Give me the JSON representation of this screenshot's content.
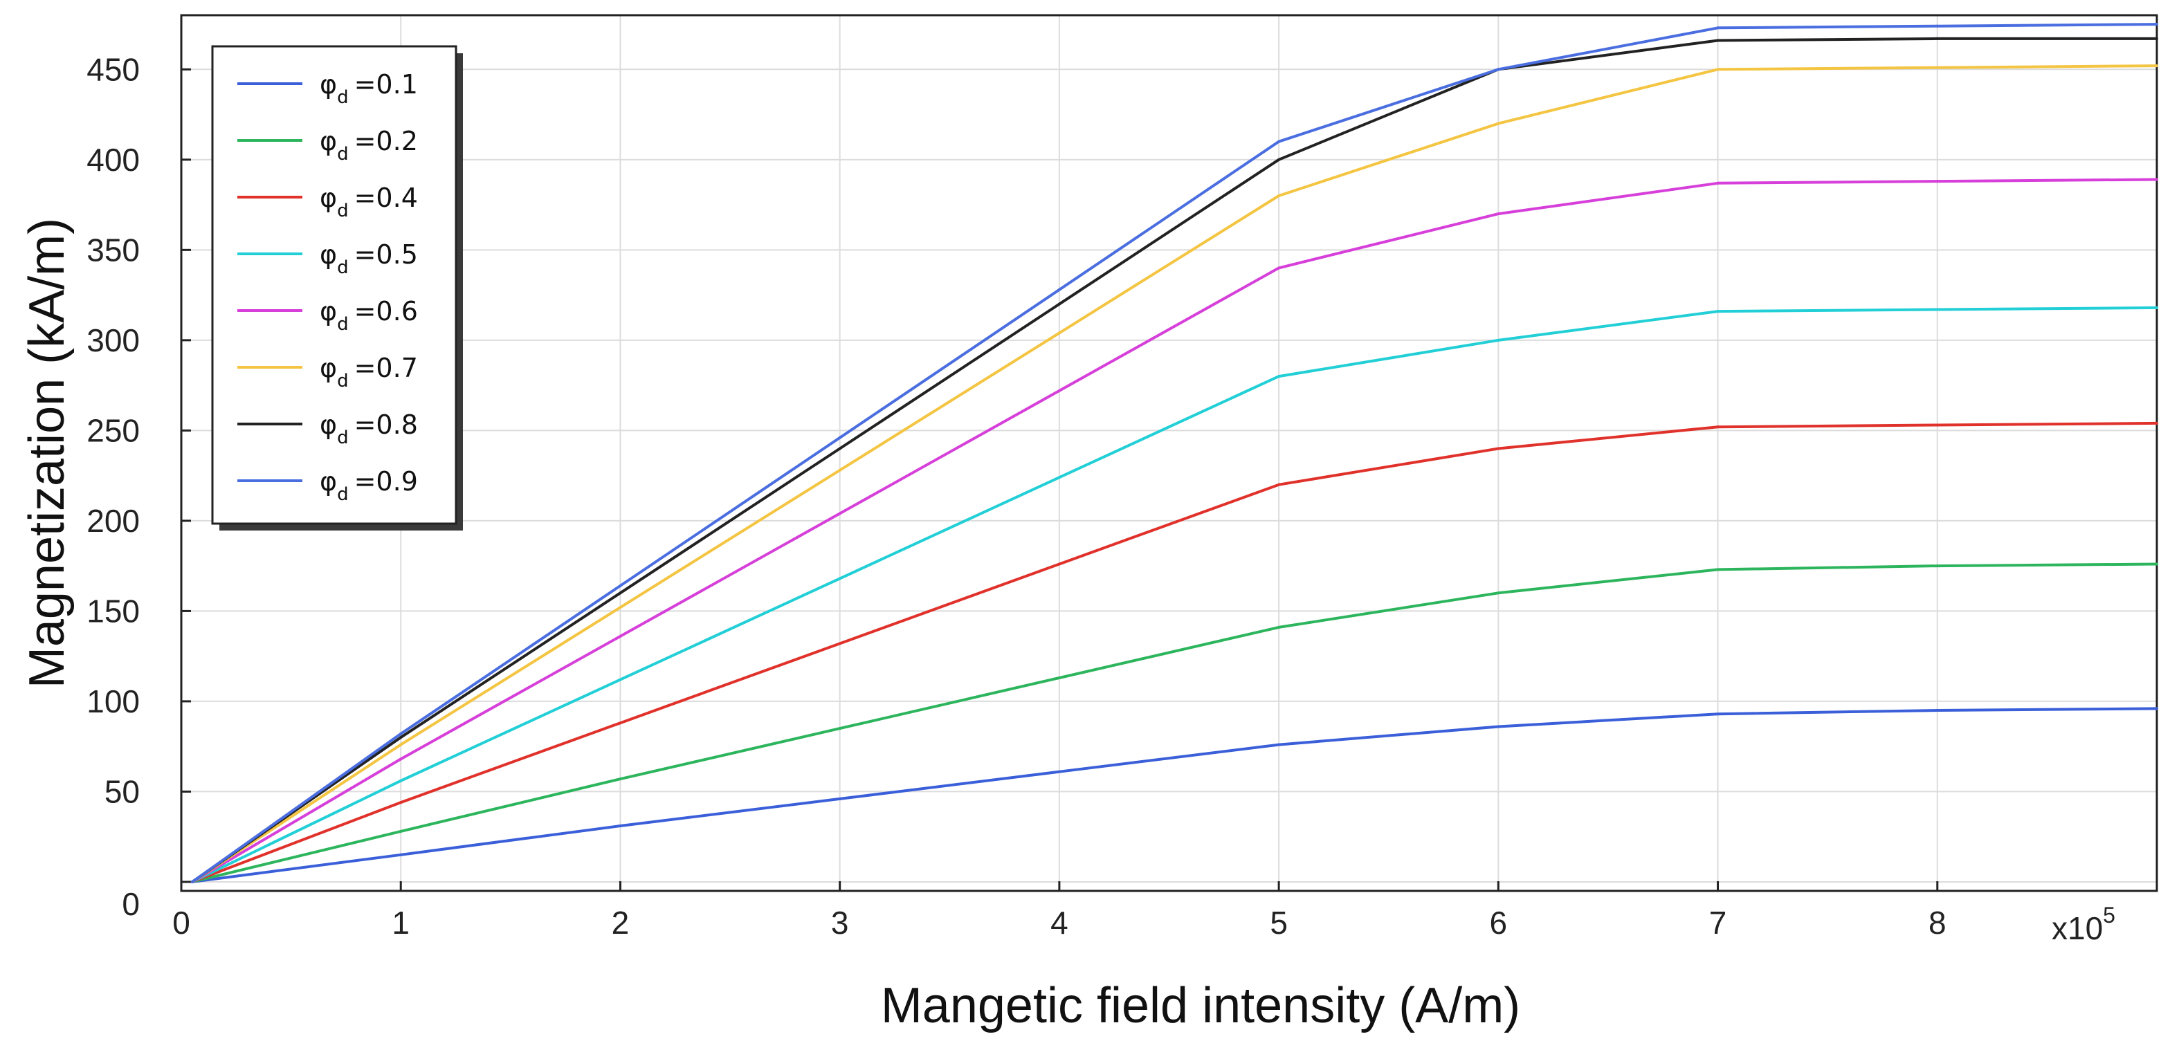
{
  "chart_data": {
    "type": "line",
    "xlabel": "Mangetic field intensity (A/m)",
    "ylabel": "Magnetization (kA/m)",
    "x_scale_label": "x10",
    "x_scale_exponent": "5",
    "x": [
      0.05,
      1,
      2,
      3,
      4,
      5,
      6,
      7,
      8,
      9
    ],
    "xlim": [
      0,
      9
    ],
    "ylim": [
      -5,
      480
    ],
    "xticks": [
      0,
      1,
      2,
      3,
      4,
      5,
      6,
      7,
      8
    ],
    "xtick_labels": [
      "0",
      "1",
      "2",
      "3",
      "4",
      "5",
      "6",
      "7",
      "8"
    ],
    "yticks": [
      0,
      50,
      100,
      150,
      200,
      250,
      300,
      350,
      400,
      450
    ],
    "ytick_labels": [
      "0",
      "50",
      "100",
      "150",
      "200",
      "250",
      "300",
      "350",
      "400",
      "450"
    ],
    "grid": true,
    "legend_position": "top-left",
    "legend_symbol": "φ",
    "legend_subscript": "d",
    "series": [
      {
        "name": "=0.1",
        "color": "#3a5fd9",
        "values": [
          0,
          15,
          31,
          46,
          61,
          76,
          86,
          93,
          95,
          96
        ]
      },
      {
        "name": "=0.2",
        "color": "#2db55d",
        "values": [
          0,
          28,
          57,
          85,
          113,
          141,
          160,
          173,
          175,
          176
        ]
      },
      {
        "name": "=0.4",
        "color": "#e0312b",
        "values": [
          0,
          44,
          88,
          132,
          176,
          220,
          240,
          252,
          253,
          254
        ]
      },
      {
        "name": "=0.5",
        "color": "#22cfd6",
        "values": [
          0,
          56,
          112,
          168,
          224,
          280,
          300,
          316,
          317,
          318
        ]
      },
      {
        "name": "=0.6",
        "color": "#d63fd9",
        "values": [
          0,
          68,
          136,
          204,
          272,
          340,
          370,
          387,
          388,
          389
        ]
      },
      {
        "name": "=0.7",
        "color": "#f4c542",
        "values": [
          0,
          76,
          152,
          228,
          304,
          380,
          420,
          450,
          451,
          452
        ]
      },
      {
        "name": "=0.8",
        "color": "#222222",
        "values": [
          0,
          80,
          160,
          240,
          320,
          400,
          450,
          466,
          467,
          467
        ]
      },
      {
        "name": "=0.9",
        "color": "#4a6ee0",
        "values": [
          0,
          82,
          164,
          246,
          328,
          410,
          450,
          473,
          474,
          475
        ]
      }
    ]
  }
}
